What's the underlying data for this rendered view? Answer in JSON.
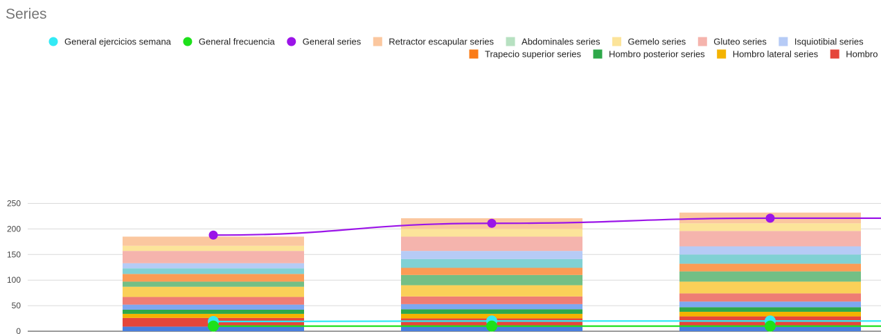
{
  "chart_data": {
    "type": "bar",
    "title": "Series",
    "ylim": [
      0,
      250
    ],
    "y_ticks": [
      0,
      50,
      100,
      150,
      200,
      250
    ],
    "stacked": true,
    "grid": true,
    "legend_position": "top",
    "bar_segments": [
      [
        {
          "color": "#4a7fde",
          "value": 9
        },
        {
          "color": "#e5463b",
          "value": 17
        },
        {
          "color": "#f4b300",
          "value": 8
        },
        {
          "color": "#2ea84a",
          "value": 8
        },
        {
          "color": "#7da7f0",
          "value": 10
        },
        {
          "color": "#ee7d74",
          "value": 15
        },
        {
          "color": "#fad058",
          "value": 20
        },
        {
          "color": "#73bf85",
          "value": 10
        },
        {
          "color": "#fb9c55",
          "value": 15
        },
        {
          "color": "#80d1d4",
          "value": 11
        },
        {
          "color": "#b6cbf6",
          "value": 10
        },
        {
          "color": "#f5b4ad",
          "value": 24
        },
        {
          "color": "#fce49a",
          "value": 10
        },
        {
          "color": "#fbc79f",
          "value": 18
        }
      ],
      [
        {
          "color": "#4a7fde",
          "value": 9
        },
        {
          "color": "#e5463b",
          "value": 16
        },
        {
          "color": "#f4b300",
          "value": 9
        },
        {
          "color": "#2ea84a",
          "value": 9
        },
        {
          "color": "#7da7f0",
          "value": 10
        },
        {
          "color": "#ee7d74",
          "value": 15
        },
        {
          "color": "#fad058",
          "value": 22
        },
        {
          "color": "#73bf85",
          "value": 20
        },
        {
          "color": "#fb9c55",
          "value": 14
        },
        {
          "color": "#80d1d4",
          "value": 17
        },
        {
          "color": "#b6cbf6",
          "value": 16
        },
        {
          "color": "#f5b4ad",
          "value": 28
        },
        {
          "color": "#fce49a",
          "value": 15
        },
        {
          "color": "#fbc79f",
          "value": 21
        }
      ],
      [
        {
          "color": "#4a7fde",
          "value": 9
        },
        {
          "color": "#e5463b",
          "value": 20
        },
        {
          "color": "#f4b300",
          "value": 9
        },
        {
          "color": "#2ea84a",
          "value": 9
        },
        {
          "color": "#7da7f0",
          "value": 11
        },
        {
          "color": "#ee7d74",
          "value": 16
        },
        {
          "color": "#fad058",
          "value": 23
        },
        {
          "color": "#73bf85",
          "value": 20
        },
        {
          "color": "#fb9c55",
          "value": 15
        },
        {
          "color": "#80d1d4",
          "value": 18
        },
        {
          "color": "#b6cbf6",
          "value": 16
        },
        {
          "color": "#f5b4ad",
          "value": 30
        },
        {
          "color": "#fce49a",
          "value": 15
        },
        {
          "color": "#fbc79f",
          "value": 21
        }
      ]
    ],
    "lines": [
      {
        "name": "General series",
        "color": "#9b14e8",
        "values": [
          188,
          211,
          221,
          221
        ]
      },
      {
        "name": "General ejercicios semana",
        "color": "#33eaf5",
        "values": [
          19,
          20,
          20,
          20
        ]
      },
      {
        "name": "General frecuencia",
        "color": "#1ee01b",
        "values": [
          10,
          10,
          10,
          10
        ]
      }
    ],
    "legend_rows": [
      [
        {
          "label": "General ejercicios semana",
          "color": "#33eaf5",
          "shape": "circle"
        },
        {
          "label": "General frecuencia",
          "color": "#1ee01b",
          "shape": "circle"
        },
        {
          "label": "General series",
          "color": "#9b14e8",
          "shape": "circle"
        },
        {
          "label": "Retractor escapular series",
          "color": "#fbc79f",
          "shape": "square"
        },
        {
          "label": "Abdominales series",
          "color": "#b7e1c1",
          "shape": "square"
        },
        {
          "label": "Gemelo series",
          "color": "#fce49a",
          "shape": "square"
        },
        {
          "label": "Gluteo series",
          "color": "#f5b4ad",
          "shape": "square"
        },
        {
          "label": "Isquiotibial series",
          "color": "#b6cbf6",
          "shape": "square"
        }
      ],
      [
        {
          "label": "Trapecio superior series",
          "color": "#fa7b17",
          "shape": "square"
        },
        {
          "label": "Hombro posterior series",
          "color": "#2ea84a",
          "shape": "square"
        },
        {
          "label": "Hombro lateral series",
          "color": "#f4b300",
          "shape": "square"
        },
        {
          "label": "Hombro",
          "color": "#e5463b",
          "shape": "square"
        }
      ]
    ]
  }
}
